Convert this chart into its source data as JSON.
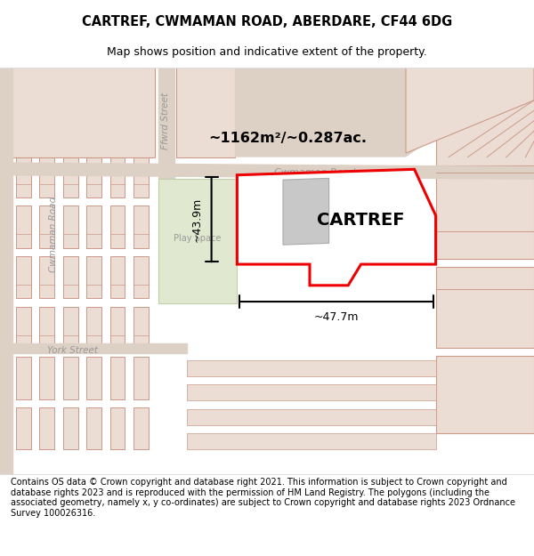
{
  "title": "CARTREF, CWMAMAN ROAD, ABERDARE, CF44 6DG",
  "subtitle": "Map shows position and indicative extent of the property.",
  "footer": "Contains OS data © Crown copyright and database right 2021. This information is subject to Crown copyright and database rights 2023 and is reproduced with the permission of HM Land Registry. The polygons (including the associated geometry, namely x, y co-ordinates) are subject to Crown copyright and database rights 2023 Ordnance Survey 100026316.",
  "property_label": "CARTREF",
  "area_label": "~1162m²/~0.287ac.",
  "width_label": "~47.7m",
  "height_label": "~43.9m",
  "play_space_label": "Play Space",
  "figure_width": 6.0,
  "figure_height": 6.25
}
